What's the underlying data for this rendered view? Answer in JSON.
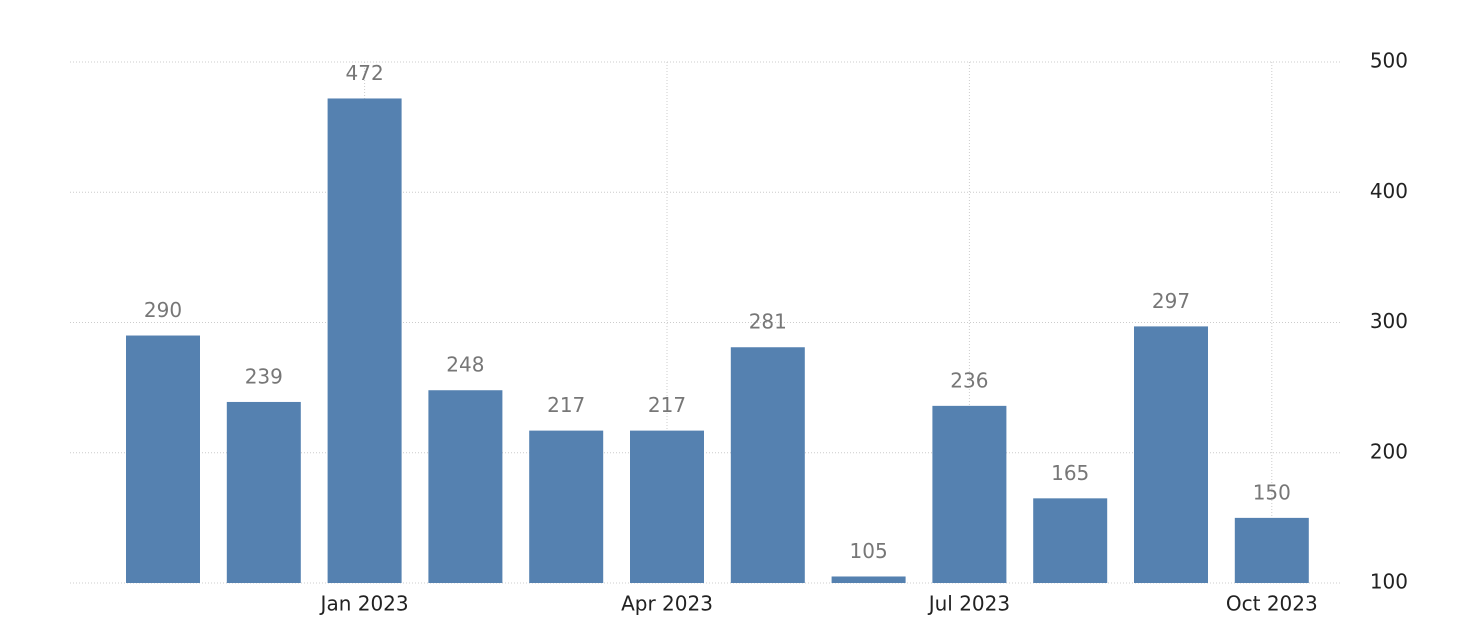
{
  "chart_data": {
    "type": "bar",
    "categories": [
      null,
      null,
      "Jan 2023",
      null,
      null,
      "Apr 2023",
      null,
      null,
      "Jul 2023",
      null,
      null,
      "Oct 2023"
    ],
    "values": [
      290,
      239,
      472,
      248,
      217,
      217,
      281,
      105,
      236,
      165,
      297,
      150
    ],
    "color": "#5581b0",
    "ylim": [
      100,
      500
    ],
    "yticks": [
      100,
      200,
      300,
      400,
      500
    ],
    "grid": true
  }
}
